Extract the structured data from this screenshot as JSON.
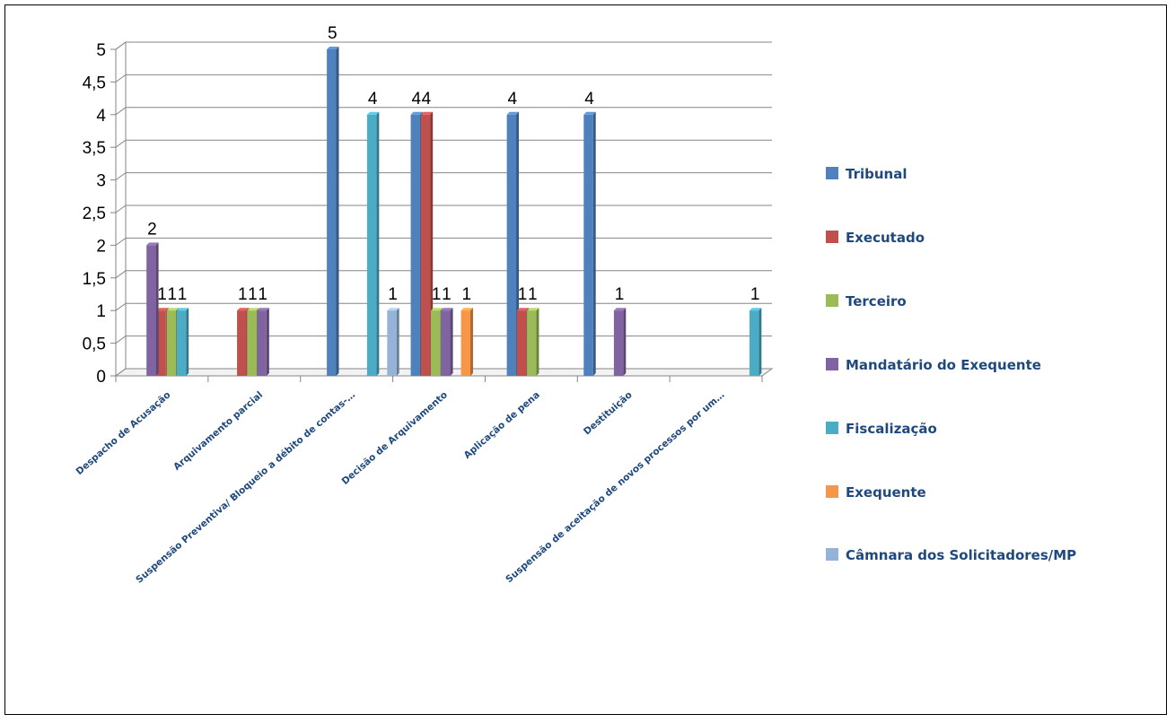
{
  "chart_data": {
    "type": "bar",
    "title": "",
    "xlabel": "",
    "ylabel": "",
    "ylim": [
      0,
      5
    ],
    "yticks": [
      "0",
      "0,5",
      "1",
      "1,5",
      "2",
      "2,5",
      "3",
      "3,5",
      "4",
      "4,5",
      "5"
    ],
    "grid": true,
    "legend_position": "right",
    "categories": [
      "Despacho de Acusação",
      "Arquivamento parcial",
      "Suspensão Preventiva/ Bloqueio a débito de contas-…",
      "Decisão de Arquivamento",
      "Aplicação de pena",
      "Destituição",
      "Suspensão de aceitação de novos processos por um…"
    ],
    "series": [
      {
        "name": "Tribunal",
        "color": "#4f81bd",
        "values": [
          null,
          null,
          5,
          4,
          4,
          4,
          null
        ]
      },
      {
        "name": "Executado",
        "color": "#c0504d",
        "values": [
          1,
          1,
          null,
          4,
          1,
          null,
          null
        ]
      },
      {
        "name": "Terceiro",
        "color": "#9bbb59",
        "values": [
          1,
          1,
          null,
          1,
          1,
          null,
          null
        ]
      },
      {
        "name": "Mandatário do Exequente",
        "color": "#8064a2",
        "values": [
          2,
          1,
          null,
          1,
          null,
          1,
          null
        ]
      },
      {
        "name": "Fiscalização",
        "color": "#4bacc6",
        "values": [
          1,
          null,
          4,
          null,
          null,
          null,
          1
        ]
      },
      {
        "name": "Exequente",
        "color": "#f79646",
        "values": [
          null,
          null,
          null,
          1,
          null,
          null,
          null
        ]
      },
      {
        "name": "Câmnara dos Solicitadores/MP",
        "color": "#95b3d7",
        "values": [
          null,
          null,
          1,
          null,
          null,
          null,
          null
        ]
      }
    ]
  }
}
